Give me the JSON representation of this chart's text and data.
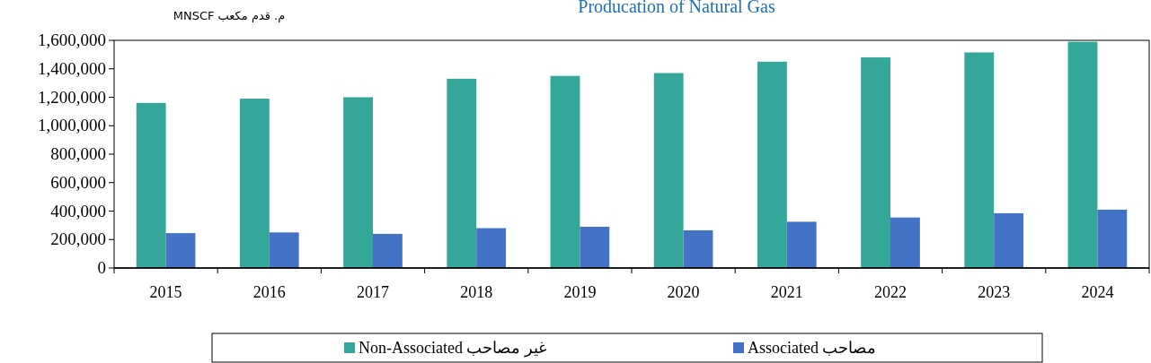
{
  "chart_data": {
    "type": "bar",
    "title": "Producation of Natural Gas",
    "ylabel": "م. قدم مكعب MNSCF",
    "categories": [
      "2015",
      "2016",
      "2017",
      "2018",
      "2019",
      "2020",
      "2021",
      "2022",
      "2023",
      "2024"
    ],
    "series": [
      {
        "name": "Non-Associated  غير مصاحب",
        "color": "#34a69a",
        "values": [
          1160000,
          1190000,
          1200000,
          1330000,
          1350000,
          1370000,
          1450000,
          1480000,
          1515000,
          1590000
        ]
      },
      {
        "name": "Associated  مصاحب",
        "color": "#4472c4",
        "values": [
          245000,
          250000,
          240000,
          280000,
          290000,
          265000,
          325000,
          355000,
          385000,
          410000
        ]
      }
    ],
    "ylim": [
      0,
      1600000
    ],
    "yticks": [
      0,
      {
        "value": 200000,
        "label": "200,000"
      },
      {
        "value": 400000,
        "label": "400,000"
      },
      {
        "value": 600000,
        "label": "600,000"
      },
      {
        "value": 800000,
        "label": "800,000"
      },
      {
        "value": 1000000,
        "label": "1,000,000"
      },
      {
        "value": 1200000,
        "label": "1,200,000"
      },
      {
        "value": 1400000,
        "label": "1,400,000"
      },
      {
        "value": 1600000,
        "label": "1,600,000"
      }
    ],
    "grid": false,
    "legend": "bottom"
  }
}
